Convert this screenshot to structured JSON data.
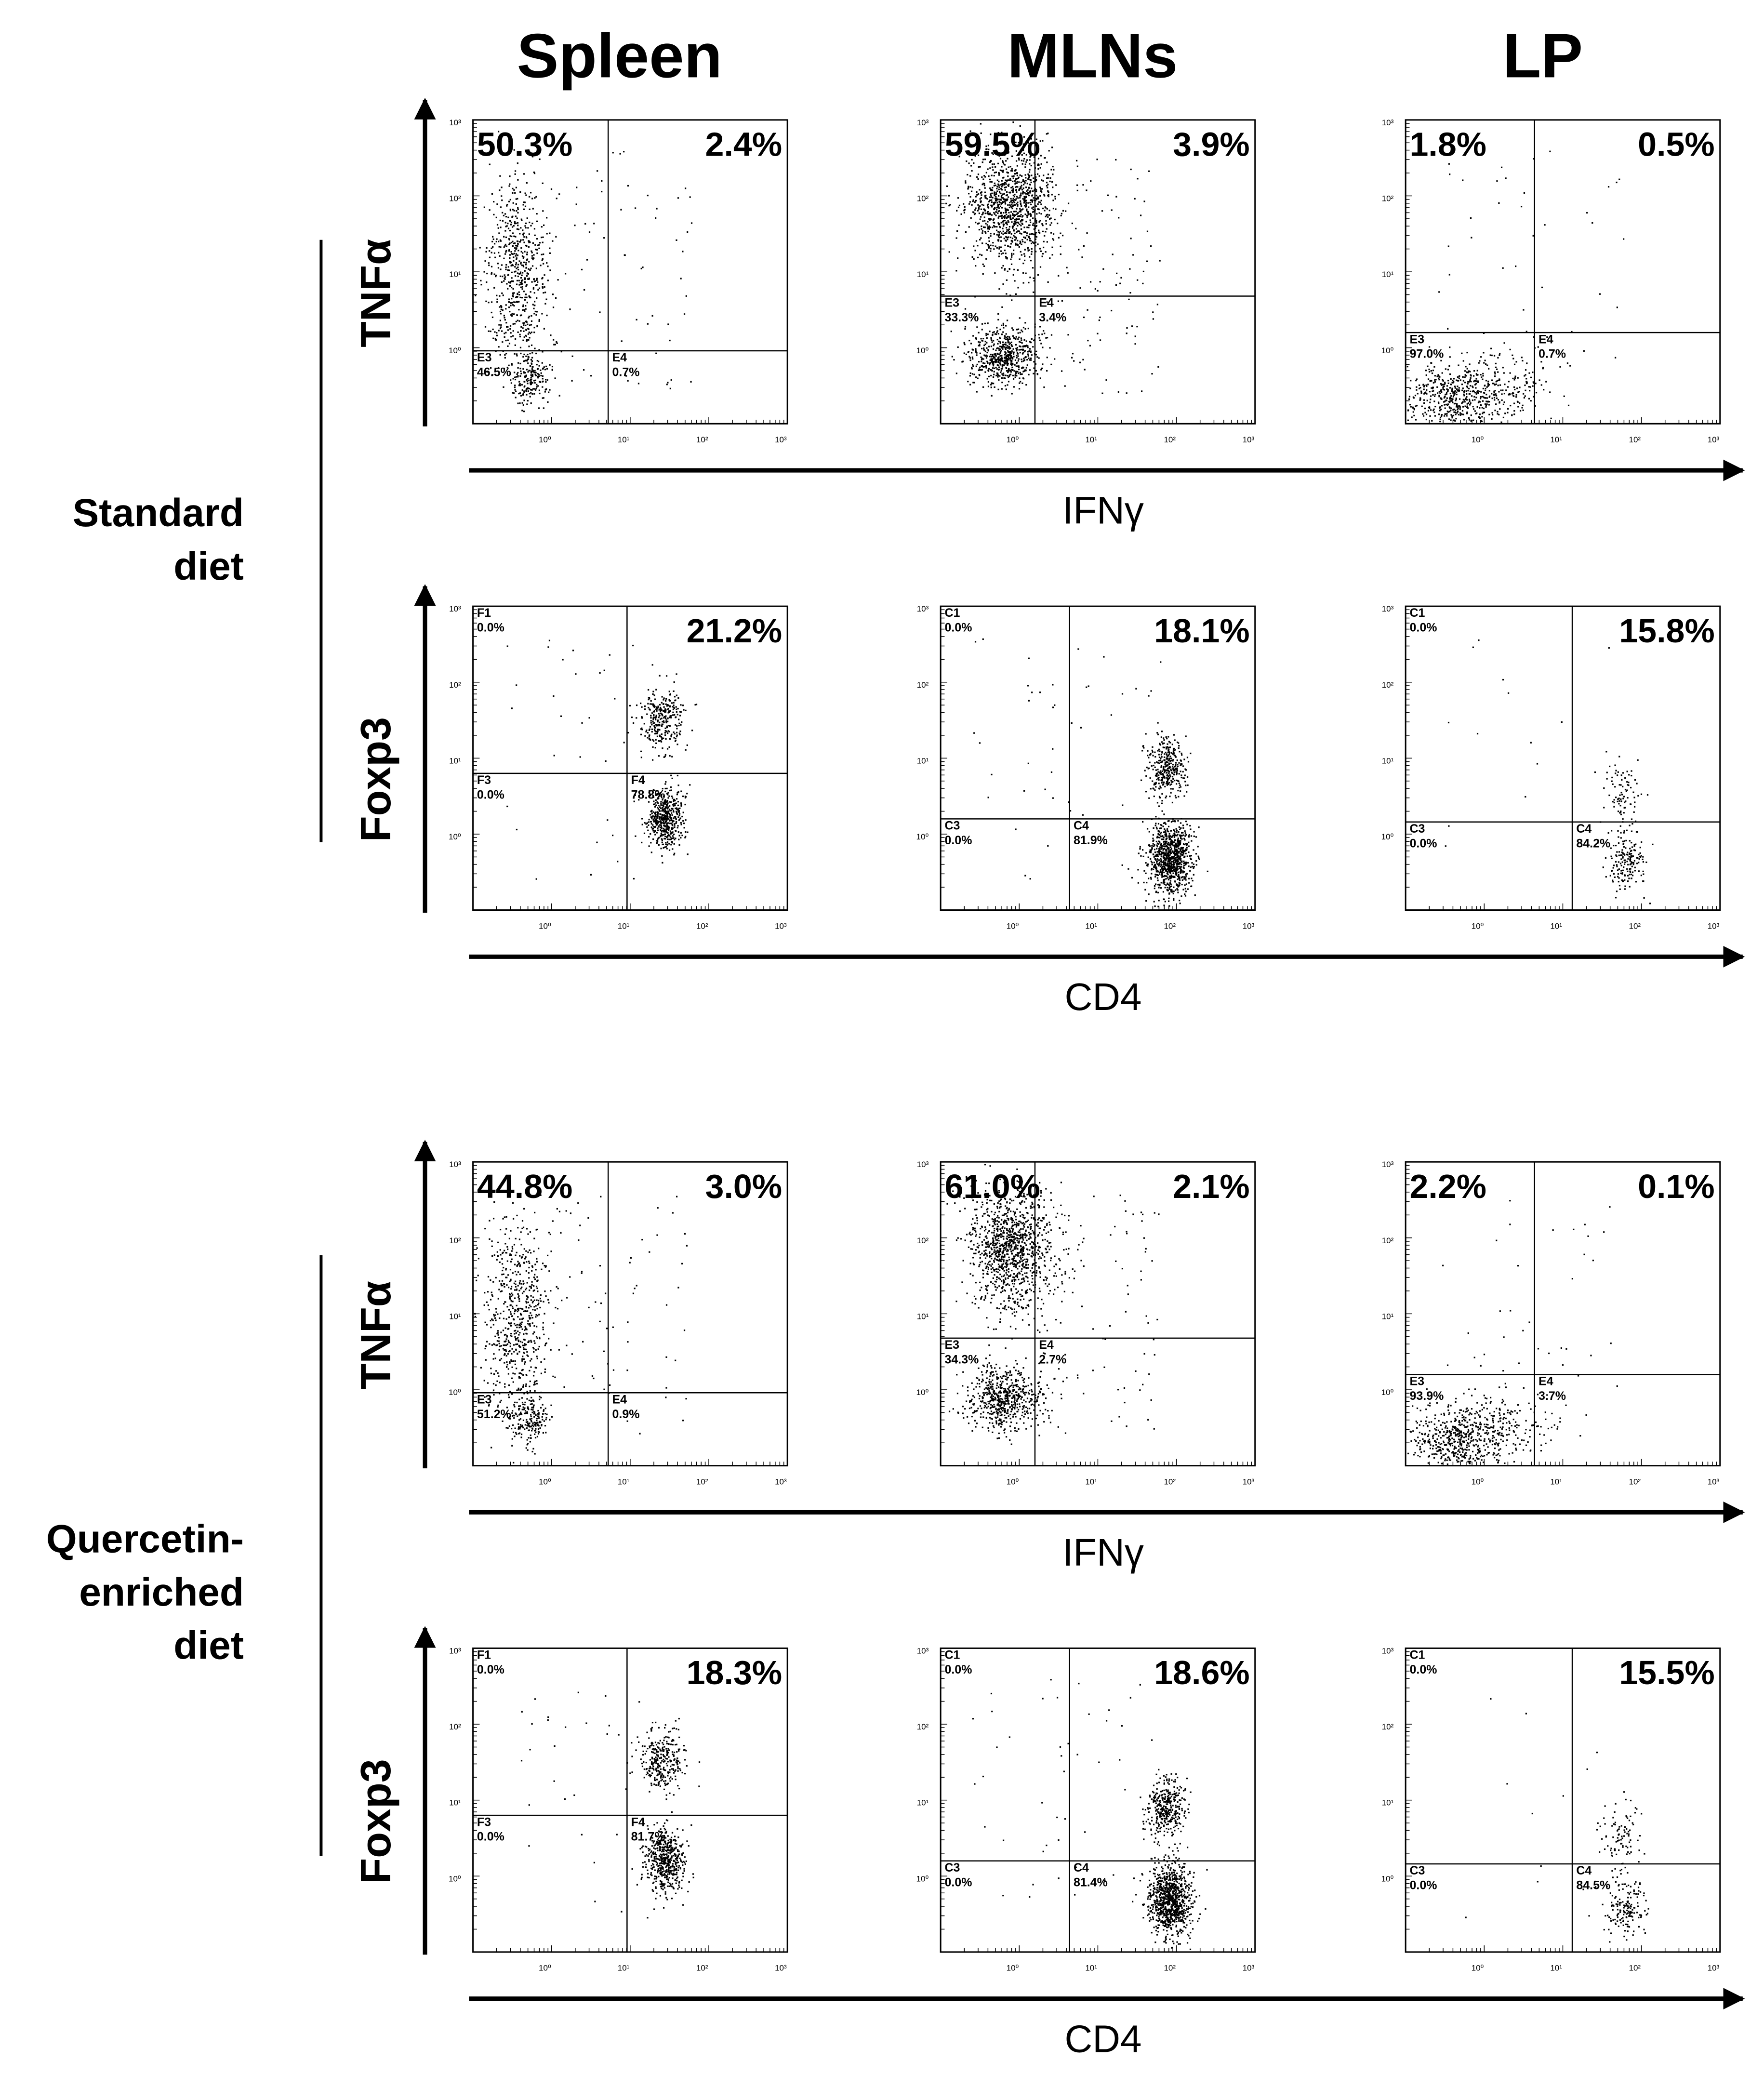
{
  "chart_data": {
    "type": "scatter",
    "description_type": "flow-cytometry-dot-plot-grid",
    "columns": [
      "Spleen",
      "MLNs",
      "LP"
    ],
    "groups": [
      {
        "label_lines": [
          "Standard",
          "diet"
        ],
        "rows": [
          {
            "kind": "cytokine",
            "ylabel": "TNFα",
            "xlabel": "IFNγ",
            "panels": [
              {
                "tl": "50.3%",
                "tr": "2.4%",
                "gates": [
                  {
                    "id": "E3",
                    "value": "46.5%"
                  },
                  {
                    "id": "E4",
                    "value": "0.7%"
                  }
                ]
              },
              {
                "tl": "59.5%",
                "tr": "3.9%",
                "gates": [
                  {
                    "id": "E3",
                    "value": "33.3%"
                  },
                  {
                    "id": "E4",
                    "value": "3.4%"
                  }
                ]
              },
              {
                "tl": "1.8%",
                "tr": "0.5%",
                "gates": [
                  {
                    "id": "E3",
                    "value": "97.0%"
                  },
                  {
                    "id": "E4",
                    "value": "0.7%"
                  }
                ]
              }
            ]
          },
          {
            "kind": "foxp3",
            "ylabel": "Foxp3",
            "xlabel": "CD4",
            "panels": [
              {
                "tr": "21.2%",
                "gates": [
                  {
                    "id": "F1",
                    "value": "0.0%"
                  },
                  {
                    "id": "F3",
                    "value": "0.0%"
                  },
                  {
                    "id": "F4",
                    "value": "78.8%"
                  }
                ]
              },
              {
                "tr": "18.1%",
                "gates": [
                  {
                    "id": "C1",
                    "value": "0.0%"
                  },
                  {
                    "id": "C3",
                    "value": "0.0%"
                  },
                  {
                    "id": "C4",
                    "value": "81.9%"
                  }
                ]
              },
              {
                "tr": "15.8%",
                "gates": [
                  {
                    "id": "C1",
                    "value": "0.0%"
                  },
                  {
                    "id": "C3",
                    "value": "0.0%"
                  },
                  {
                    "id": "C4",
                    "value": "84.2%"
                  }
                ]
              }
            ]
          }
        ]
      },
      {
        "label_lines": [
          "Quercetin-",
          "enriched",
          "diet"
        ],
        "rows": [
          {
            "kind": "cytokine",
            "ylabel": "TNFα",
            "xlabel": "IFNγ",
            "panels": [
              {
                "tl": "44.8%",
                "tr": "3.0%",
                "gates": [
                  {
                    "id": "E3",
                    "value": "51.2%"
                  },
                  {
                    "id": "E4",
                    "value": "0.9%"
                  }
                ]
              },
              {
                "tl": "61.0%",
                "tr": "2.1%",
                "gates": [
                  {
                    "id": "E3",
                    "value": "34.3%"
                  },
                  {
                    "id": "E4",
                    "value": "2.7%"
                  }
                ]
              },
              {
                "tl": "2.2%",
                "tr": "0.1%",
                "gates": [
                  {
                    "id": "E3",
                    "value": "93.9%"
                  },
                  {
                    "id": "E4",
                    "value": "3.7%"
                  }
                ]
              }
            ]
          },
          {
            "kind": "foxp3",
            "ylabel": "Foxp3",
            "xlabel": "CD4",
            "panels": [
              {
                "tr": "18.3%",
                "gates": [
                  {
                    "id": "F1",
                    "value": "0.0%"
                  },
                  {
                    "id": "F3",
                    "value": "0.0%"
                  },
                  {
                    "id": "F4",
                    "value": "81.7%"
                  }
                ]
              },
              {
                "tr": "18.6%",
                "gates": [
                  {
                    "id": "C1",
                    "value": "0.0%"
                  },
                  {
                    "id": "C3",
                    "value": "0.0%"
                  },
                  {
                    "id": "C4",
                    "value": "81.4%"
                  }
                ]
              },
              {
                "tr": "15.5%",
                "gates": [
                  {
                    "id": "C1",
                    "value": "0.0%"
                  },
                  {
                    "id": "C3",
                    "value": "0.0%"
                  },
                  {
                    "id": "C4",
                    "value": "84.5%"
                  }
                ]
              }
            ]
          }
        ]
      }
    ],
    "axis_scale": "log",
    "axis_decades": [
      "10⁻¹",
      "10⁰",
      "10¹",
      "10²",
      "10³"
    ],
    "point_color": "#000000"
  }
}
